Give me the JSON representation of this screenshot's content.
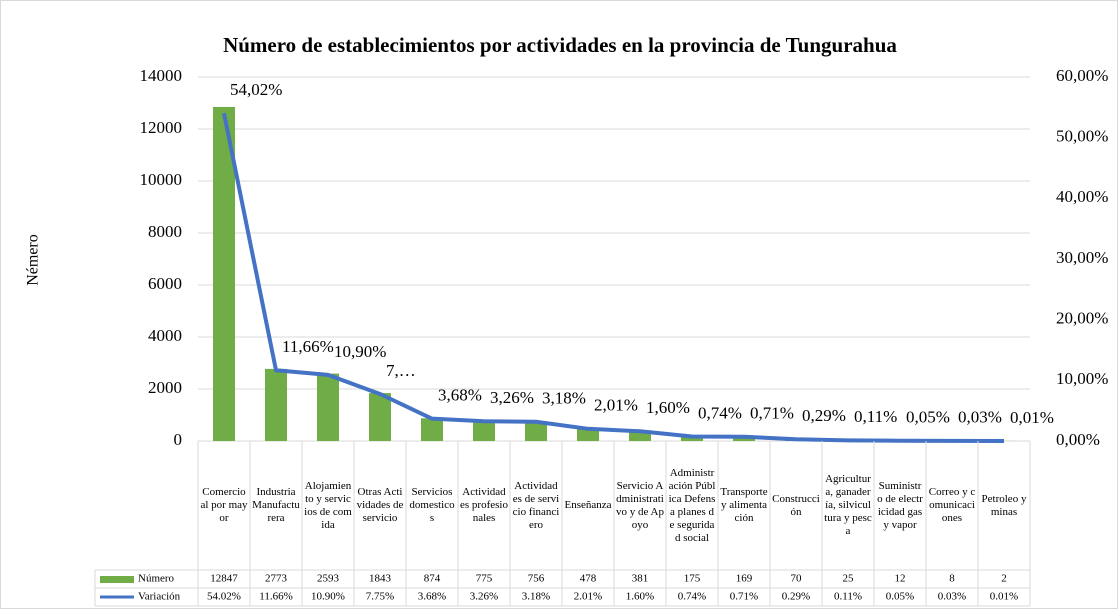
{
  "chart_data": {
    "type": "bar-line",
    "title": "Número de establecimientos por actividades en la provincia de Tungurahua",
    "y_label": "Némero",
    "categories": [
      "Comercio al por mayor",
      "Industria Manufacturera",
      "Alojamiento y servicios de comida",
      "Otras Actividades de servicio",
      "Servicios domesticos",
      "Actividades profesionales",
      "Actividades de servicio financiero",
      "Enseñanza",
      "Servicio Administrativo y de Apoyo",
      "Administración Pública Defensa planes de seguridad social",
      "Transporte y alimentación",
      "Construcción",
      "Agricultura, ganadería, silvicultura y pesca",
      "Suministro de electricidad gas y vapor",
      "Correo y comunicaciones",
      "Petroleo y minas"
    ],
    "series": [
      {
        "name": "Número",
        "type": "bar",
        "color": "#70ad47",
        "values": [
          12847,
          2773,
          2593,
          1843,
          874,
          775,
          756,
          478,
          381,
          175,
          169,
          70,
          25,
          12,
          8,
          2
        ]
      },
      {
        "name": "Variación",
        "type": "line",
        "axis": "y2",
        "color": "#4472c4",
        "values": [
          54.02,
          11.66,
          10.9,
          7.75,
          3.68,
          3.26,
          3.18,
          2.01,
          1.6,
          0.74,
          0.71,
          0.29,
          0.11,
          0.05,
          0.03,
          0.01
        ],
        "value_labels": [
          "54,02%",
          "11,66%",
          "10,90%",
          "7,…",
          "3,68%",
          "3,26%",
          "3,18%",
          "2,01%",
          "1,60%",
          "0,74%",
          "0,71%",
          "0,29%",
          "0,11%",
          "0,05%",
          "0,03%",
          "0,01%"
        ],
        "table_labels": [
          "54.02%",
          "11.66%",
          "10.90%",
          "7.75%",
          "3.68%",
          "3.26%",
          "3.18%",
          "2.01%",
          "1.60%",
          "0.74%",
          "0.71%",
          "0.29%",
          "0.11%",
          "0.05%",
          "0.03%",
          "0.01%"
        ]
      }
    ],
    "ylim": [
      0,
      14000
    ],
    "yticks": [
      0,
      2000,
      4000,
      6000,
      8000,
      10000,
      12000,
      14000
    ],
    "y2lim": [
      0,
      60
    ],
    "y2ticks": [
      {
        "value": 0,
        "label": "0,00%"
      },
      {
        "value": 10,
        "label": "10,00%"
      },
      {
        "value": 20,
        "label": "20,00%"
      },
      {
        "value": 30,
        "label": "30,00%"
      },
      {
        "value": 40,
        "label": "40,00%"
      },
      {
        "value": 50,
        "label": "50,00%"
      },
      {
        "value": 60,
        "label": "60,00%"
      }
    ],
    "grid": true
  }
}
